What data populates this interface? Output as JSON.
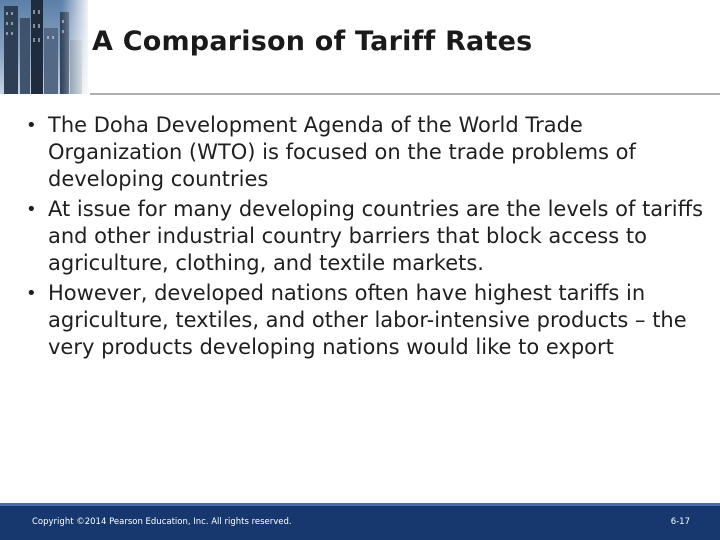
{
  "slide": {
    "title": "A Comparison of Tariff Rates",
    "bullets": [
      "The Doha Development Agenda of the World Trade Organization (WTO) is focused on the trade problems of developing countries",
      "At issue for many developing countries are the levels of tariffs and other industrial country barriers that block access to agriculture, clothing, and textile markets.",
      "However, developed nations often have highest tariffs in agriculture, textiles, and other labor-intensive products – the very products developing nations would like to export"
    ],
    "bullet_glyph": "•"
  },
  "footer": {
    "copyright": "Copyright ©2014 Pearson Education, Inc. All rights reserved.",
    "page": "6-17"
  },
  "colors": {
    "footer_bg": "#17386e",
    "title": "#1a1a1a",
    "body_text": "#1f1f1f"
  }
}
